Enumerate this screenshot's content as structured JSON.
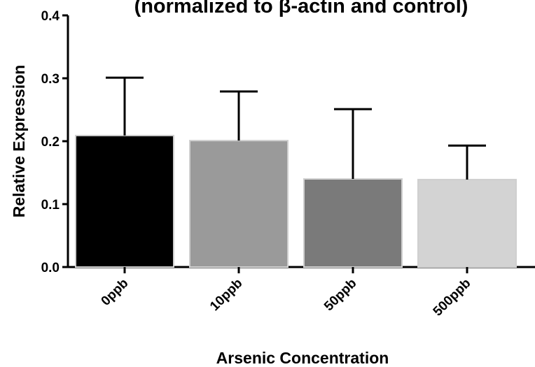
{
  "chart_data": {
    "type": "bar",
    "title": "(normalized to β-actin and control)",
    "xlabel": "Arsenic Concentration",
    "ylabel": "Relative Expression",
    "categories": [
      "0ppb",
      "10ppb",
      "50ppb",
      "500ppb"
    ],
    "values": [
      0.209,
      0.201,
      0.14,
      0.139
    ],
    "error_upper": [
      0.301,
      0.279,
      0.251,
      0.193
    ],
    "bar_colors": [
      "#000000",
      "#9a9a9a",
      "#7a7a7a",
      "#d3d3d3"
    ],
    "ylim": [
      0,
      0.4
    ],
    "yticks": [
      "0.0",
      "0.1",
      "0.2",
      "0.3",
      "0.4"
    ],
    "grid": false,
    "legend": "none"
  }
}
